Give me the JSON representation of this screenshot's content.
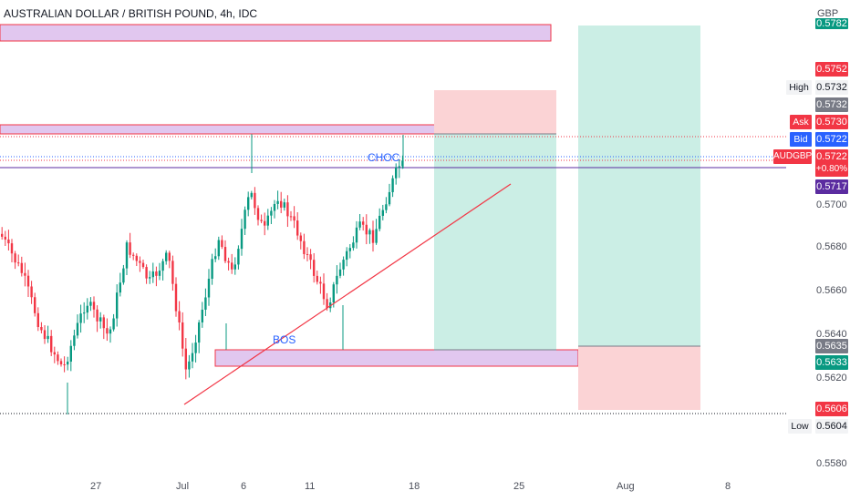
{
  "header": {
    "title": "AUSTRALIAN DOLLAR / BRITISH POUND, 4h, IDC"
  },
  "price_axis": {
    "currency": "GBP",
    "tick_labels": [
      "0.5700",
      "0.5680",
      "0.5660",
      "0.5640",
      "0.5620",
      "0.5580"
    ]
  },
  "time_axis": {
    "tick_labels": [
      "27",
      "Jul",
      "6",
      "11",
      "18",
      "25",
      "Aug",
      "8"
    ]
  },
  "price_badges": [
    {
      "name": "top-cut-badge",
      "label": "0.5782",
      "color": "#089981",
      "price": 0.5782
    },
    {
      "name": "level-badge-5752",
      "label": "0.5752",
      "color": "#f23645",
      "price": 0.5752
    },
    {
      "name": "high-badge",
      "label": "0.5732",
      "color": "#f2f3f5",
      "price": 0.5732,
      "text_color": "#131722"
    },
    {
      "name": "level-badge-5732",
      "label": "0.5732",
      "color": "#787b86",
      "price": 0.5732
    },
    {
      "name": "ask-badge",
      "label": "0.5730",
      "color": "#f23645",
      "price": 0.573
    },
    {
      "name": "bid-badge",
      "label": "0.5722",
      "color": "#2962ff",
      "price": 0.5722
    },
    {
      "name": "last-price-badge",
      "label": "0.5722",
      "color": "#f23645",
      "price": 0.5722
    },
    {
      "name": "level-badge-5717",
      "label": "0.5717",
      "color": "#5b2ca0",
      "price": 0.5717
    },
    {
      "name": "level-badge-5635",
      "label": "0.5635",
      "color": "#787b86",
      "price": 0.5635
    },
    {
      "name": "level-badge-5633",
      "label": "0.5633",
      "color": "#089981",
      "price": 0.5633
    },
    {
      "name": "level-badge-5606",
      "label": "0.5606",
      "color": "#f23645",
      "price": 0.5606
    },
    {
      "name": "low-badge",
      "label": "0.5604",
      "color": "#f2f3f5",
      "price": 0.5604,
      "text_color": "#131722"
    }
  ],
  "price_tags": {
    "high": "High",
    "ask": "Ask",
    "bid": "Bid",
    "symbol": "AUDGBP",
    "change": "+0.80%",
    "low": "Low"
  },
  "annotations": {
    "choc": "CHOC",
    "bos": "BOS"
  },
  "colors": {
    "up": "#089981",
    "down": "#f23645",
    "zone_fill": "#e1c7ef",
    "zone_border": "#f23645",
    "target_fill": "#cbeee5",
    "stop_fill": "#fbd3d5",
    "level_line": "#5b2ca0",
    "trendline": "#f23645"
  }
}
